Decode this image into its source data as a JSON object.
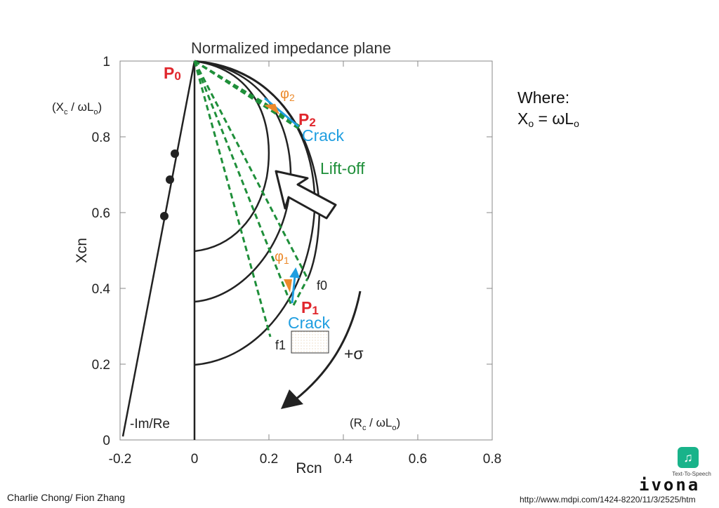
{
  "diagram": {
    "title": "Normalized impedance plane",
    "y_axis_label": "Xcn",
    "x_axis_label": "Rcn",
    "y_axis_note": {
      "open": "(X",
      "sub1": "c",
      "mid": " / ωL",
      "sub2": "o",
      "close": ")"
    },
    "x_axis_note": {
      "open": "(R",
      "sub1": "c",
      "mid": " / ωL",
      "sub2": "o",
      "close": ")"
    },
    "x_ticks": [
      "-0.2",
      "0",
      "0.2",
      "0.4",
      "0.6",
      "0.8"
    ],
    "y_ticks": [
      "0",
      "0.2",
      "0.4",
      "0.6",
      "0.8",
      "1"
    ],
    "x_tick_values": [
      -0.2,
      0,
      0.2,
      0.4,
      0.6,
      0.8
    ],
    "y_tick_values": [
      0,
      0.2,
      0.4,
      0.6,
      0.8,
      1
    ],
    "x_range": [
      -0.2,
      0.8
    ],
    "y_range": [
      0,
      1
    ],
    "p0": {
      "label": "P",
      "sub": "0"
    },
    "p1": {
      "label": "P",
      "sub": "1",
      "crack": "Crack"
    },
    "p2": {
      "label": "P",
      "sub": "2",
      "crack": "Crack"
    },
    "phi1": {
      "label": "φ",
      "sub": "1"
    },
    "phi2": {
      "label": "φ",
      "sub": "2"
    },
    "lift_off": "Lift-off",
    "f0": "f0",
    "f1": "f1",
    "sigma": "+σ",
    "im_re": "-Im/Re",
    "colors": {
      "red": "#e0262c",
      "blue": "#1f9ee0",
      "green": "#1f8f3a",
      "orange": "#ec8a2b",
      "black": "#222222"
    }
  },
  "note": {
    "where": "Where:",
    "x_sym": "X",
    "x_sub": "o",
    "equals": " = ωL",
    "l_sub": "o"
  },
  "footer": {
    "author": "Charlie Chong/ Fion Zhang",
    "url": "http://www.mdpi.com/1424-8220/11/3/2525/htm"
  },
  "logo": {
    "tts": "Text-To-Speech",
    "word": "ivona"
  }
}
